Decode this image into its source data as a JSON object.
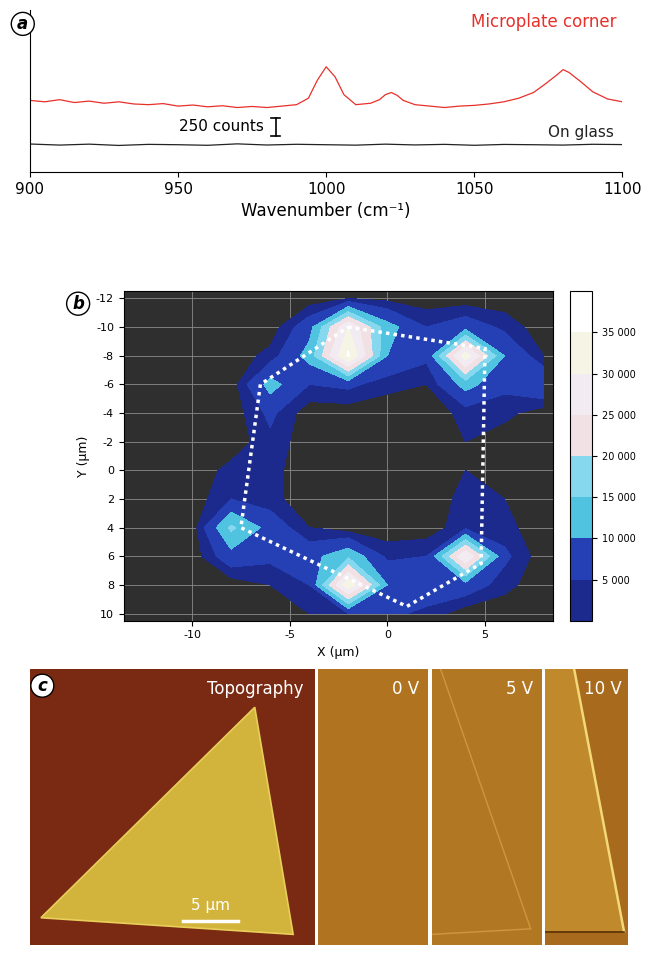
{
  "chart_data": [
    {
      "type": "line",
      "panel_label": "a",
      "x_label": "Wavenumber (cm⁻¹)",
      "xlim": [
        900,
        1100
      ],
      "xticks": [
        900,
        950,
        1000,
        1050,
        1100
      ],
      "ylim": [
        -380,
        1890
      ],
      "yticks": [],
      "tick_labels": "x",
      "scale_bar": {
        "value": 250,
        "label": "250 counts"
      },
      "series": [
        {
          "name": "Microplate corner",
          "color": "#e8302a",
          "x": [
            900,
            905,
            910,
            915,
            920,
            925,
            930,
            935,
            940,
            945,
            950,
            955,
            960,
            965,
            970,
            975,
            980,
            985,
            990,
            994,
            997,
            1000,
            1003,
            1006,
            1010,
            1015,
            1018,
            1020,
            1022,
            1024,
            1026,
            1030,
            1035,
            1040,
            1045,
            1050,
            1055,
            1060,
            1065,
            1070,
            1074,
            1078,
            1080,
            1082,
            1086,
            1090,
            1095,
            1100
          ],
          "values": [
            620,
            600,
            630,
            590,
            610,
            580,
            600,
            570,
            560,
            575,
            540,
            555,
            530,
            545,
            520,
            535,
            520,
            540,
            560,
            650,
            900,
            1090,
            950,
            700,
            560,
            580,
            630,
            700,
            730,
            690,
            620,
            560,
            540,
            520,
            540,
            550,
            570,
            600,
            650,
            730,
            850,
            980,
            1050,
            1010,
            880,
            740,
            640,
            600
          ]
        },
        {
          "name": "On glass",
          "color": "#222222",
          "x": [
            900,
            910,
            920,
            930,
            940,
            950,
            960,
            970,
            980,
            990,
            1000,
            1010,
            1020,
            1030,
            1040,
            1050,
            1060,
            1070,
            1080,
            1090,
            1100
          ],
          "values": [
            10,
            -5,
            8,
            -10,
            5,
            0,
            -8,
            12,
            -4,
            6,
            0,
            -6,
            8,
            -3,
            5,
            -8,
            4,
            0,
            -5,
            6,
            2
          ]
        }
      ]
    },
    {
      "type": "contour",
      "panel_label": "b",
      "x_label": "X (µm)",
      "y_label": "Y (µm)",
      "xlim": [
        -13.5,
        8.5
      ],
      "xticks": [
        -10,
        -5,
        0,
        5
      ],
      "ylim": [
        10.5,
        -12.5
      ],
      "yticks": [
        -12,
        -10,
        -8,
        -6,
        -4,
        -2,
        0,
        2,
        4,
        6,
        8,
        10
      ],
      "grid": true,
      "x": [
        -12,
        -10,
        -8,
        -6,
        -4,
        -2,
        0,
        2,
        4,
        6,
        8
      ],
      "y": [
        -12,
        -10,
        -8,
        -6,
        -4,
        -2,
        0,
        2,
        4,
        6,
        8,
        10
      ],
      "values": [
        [
          0,
          0,
          0,
          0,
          0,
          2000,
          1000,
          0,
          0,
          0,
          0
        ],
        [
          0,
          0,
          0,
          0,
          8000,
          30000,
          12000,
          5000,
          8000,
          4000,
          0
        ],
        [
          0,
          0,
          0,
          3000,
          12000,
          36000,
          10000,
          6000,
          33000,
          10000,
          2000
        ],
        [
          0,
          0,
          0,
          12000,
          5000,
          6000,
          3000,
          2000,
          12000,
          6000,
          10000
        ],
        [
          0,
          0,
          0,
          6000,
          0,
          0,
          0,
          0,
          3000,
          3000,
          0
        ],
        [
          0,
          0,
          0,
          4000,
          0,
          0,
          0,
          0,
          2000,
          0,
          0
        ],
        [
          0,
          0,
          3000,
          3000,
          0,
          0,
          0,
          0,
          2000,
          2000,
          0
        ],
        [
          0,
          0,
          5000,
          3000,
          0,
          0,
          0,
          0,
          3000,
          2000,
          0
        ],
        [
          0,
          0,
          16000,
          8000,
          2000,
          0,
          0,
          0,
          4000,
          3000,
          0
        ],
        [
          0,
          0,
          8000,
          6000,
          8000,
          14000,
          4000,
          5000,
          30000,
          6000,
          0
        ],
        [
          0,
          0,
          0,
          2000,
          5000,
          34000,
          10000,
          8000,
          8000,
          3000,
          0
        ],
        [
          0,
          0,
          0,
          0,
          2000,
          5000,
          6000,
          4000,
          0,
          0,
          0
        ]
      ],
      "levels": [
        2000,
        5000,
        10000,
        15000,
        20000,
        25000,
        30000,
        35000,
        37500
      ],
      "colorbar_ticks": [
        {
          "value": 5000,
          "label": "5 000"
        },
        {
          "value": 10000,
          "label": "10 000"
        },
        {
          "value": 15000,
          "label": "15 000"
        },
        {
          "value": 20000,
          "label": "20 000"
        },
        {
          "value": 25000,
          "label": "25 000"
        },
        {
          "value": 30000,
          "label": "30 000"
        },
        {
          "value": 35000,
          "label": "35 000"
        }
      ],
      "outline": {
        "x": [
          -2,
          5,
          4.8,
          1,
          -7.5,
          -6.5
        ],
        "y": [
          -10,
          -8.5,
          6.5,
          9.5,
          4,
          -6
        ]
      }
    },
    {
      "type": "image",
      "panel_label": "c",
      "panels": [
        "Topography",
        "0 V",
        "5 V",
        "10 V"
      ],
      "scale_bar": {
        "value": 5,
        "label": "5 µm"
      }
    }
  ]
}
